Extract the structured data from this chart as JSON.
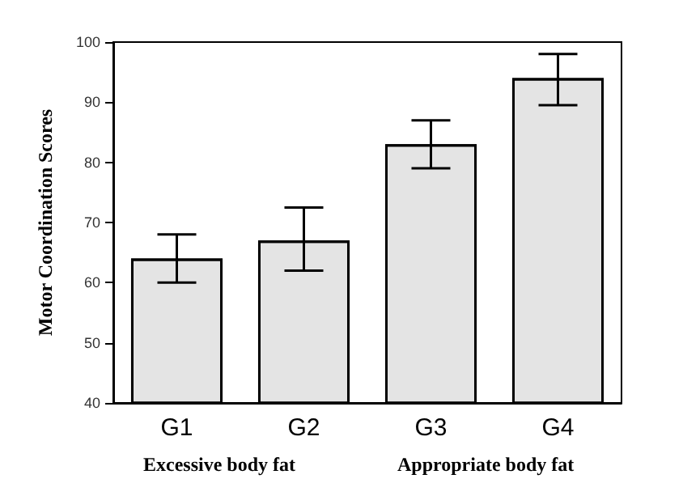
{
  "chart_data": {
    "type": "bar",
    "ylabel": "Motor Coordination Scores",
    "categories": [
      "G1",
      "G2",
      "G3",
      "G4"
    ],
    "values": [
      64,
      67,
      83,
      94
    ],
    "errors": [
      [
        60,
        68
      ],
      [
        62,
        72.5
      ],
      [
        79,
        87
      ],
      [
        89.5,
        98
      ]
    ],
    "color": "#e4e4e4",
    "ylim": [
      40,
      100
    ],
    "yticks": [
      40,
      50,
      60,
      70,
      80,
      90,
      100
    ],
    "grid": false,
    "annotations": [
      "Excessive body fat",
      "Appropriate body fat"
    ]
  }
}
